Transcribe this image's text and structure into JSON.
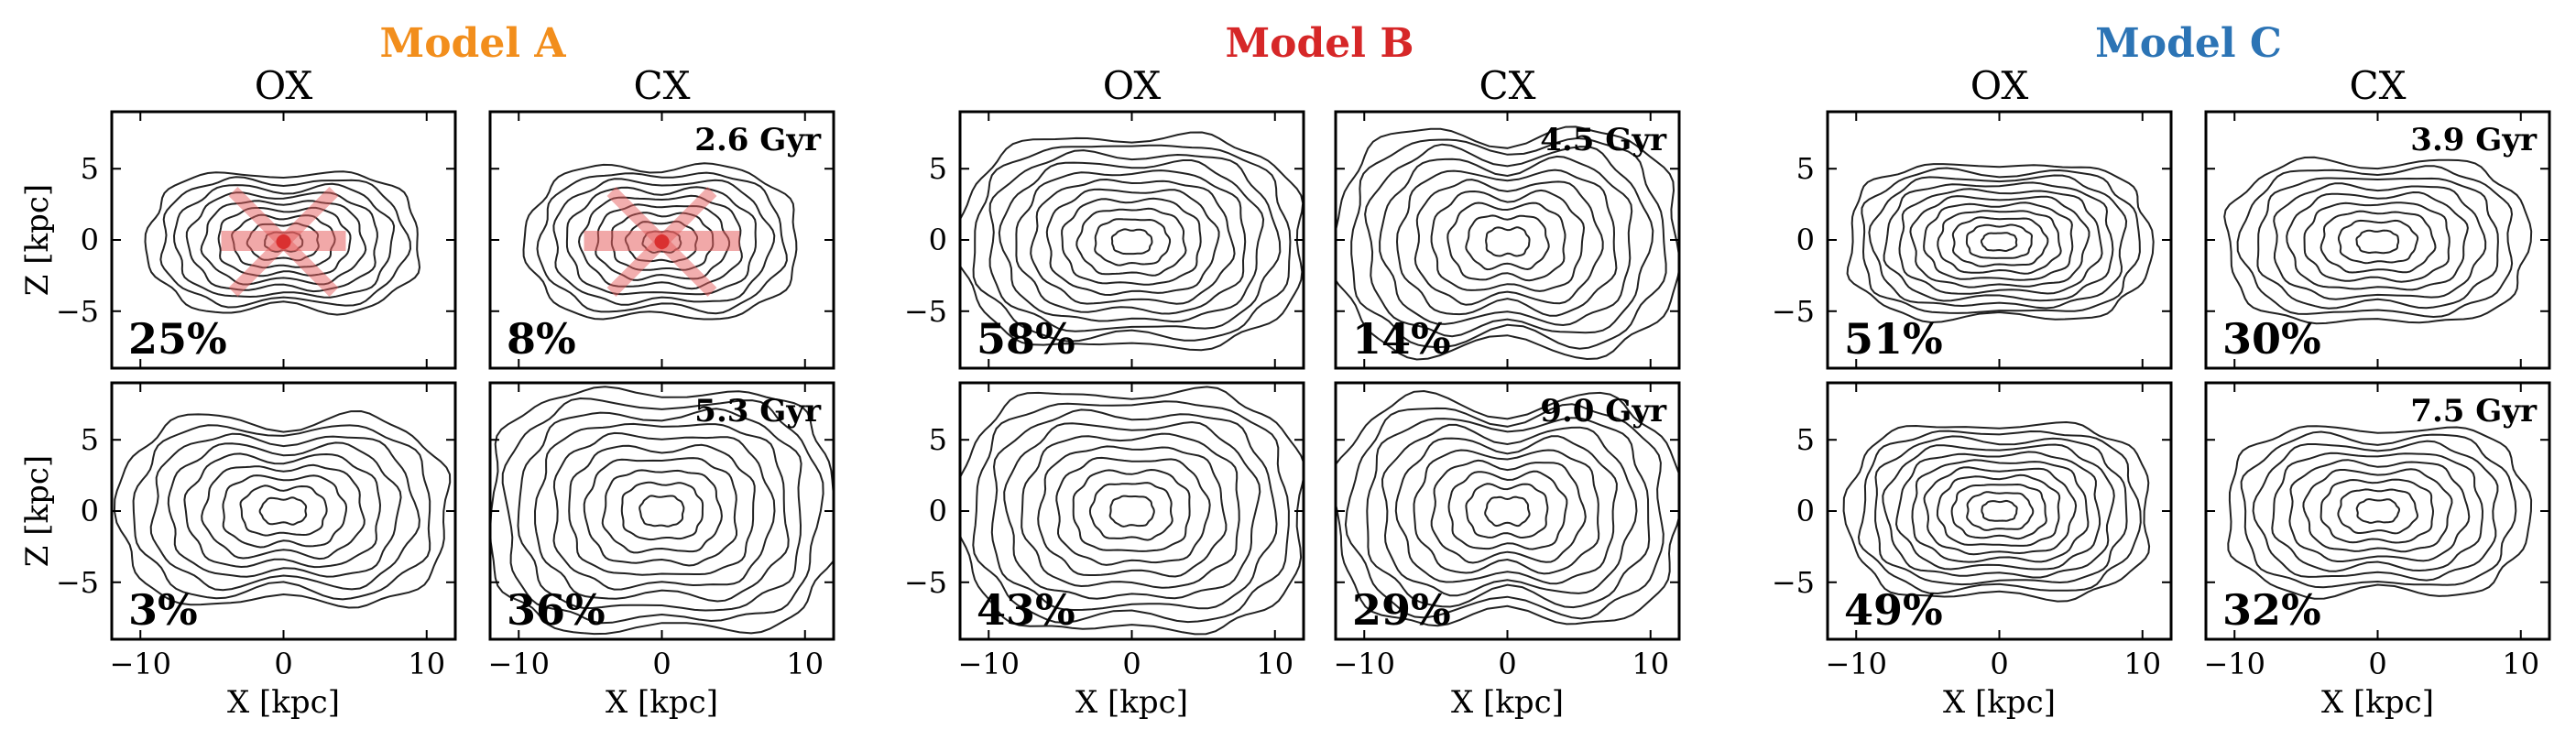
{
  "figure": {
    "xlabel": "X [kpc]",
    "ylabel": "Z [kpc]",
    "xticks": [
      "−10",
      "0",
      "10"
    ],
    "yticks": [
      "5",
      "0",
      "−5"
    ],
    "xlim": [
      -12,
      12
    ],
    "ylim": [
      -9,
      9
    ]
  },
  "models": [
    {
      "title": "Model A",
      "color": "#f28e1c",
      "columns": [
        "OX",
        "CX"
      ],
      "panels": [
        {
          "pct": "25%",
          "time": "",
          "xshape": true,
          "red_bar": true
        },
        {
          "pct": "8%",
          "time": "2.6 Gyr",
          "xshape": true,
          "red_bar": true
        },
        {
          "pct": "3%",
          "time": "",
          "xshape": false,
          "red_bar": false
        },
        {
          "pct": "36%",
          "time": "5.3 Gyr",
          "xshape": false,
          "red_bar": false
        }
      ]
    },
    {
      "title": "Model B",
      "color": "#d62728",
      "columns": [
        "OX",
        "CX"
      ],
      "panels": [
        {
          "pct": "58%",
          "time": "",
          "xshape": false,
          "red_bar": false
        },
        {
          "pct": "14%",
          "time": "4.5 Gyr",
          "xshape": false,
          "red_bar": false
        },
        {
          "pct": "43%",
          "time": "",
          "xshape": false,
          "red_bar": false
        },
        {
          "pct": "29%",
          "time": "9.0 Gyr",
          "xshape": false,
          "red_bar": false
        }
      ]
    },
    {
      "title": "Model C",
      "color": "#2c74b5",
      "columns": [
        "OX",
        "CX"
      ],
      "panels": [
        {
          "pct": "51%",
          "time": "",
          "xshape": false,
          "red_bar": false
        },
        {
          "pct": "30%",
          "time": "3.9 Gyr",
          "xshape": false,
          "red_bar": false
        },
        {
          "pct": "49%",
          "time": "",
          "xshape": false,
          "red_bar": false
        },
        {
          "pct": "32%",
          "time": "7.5 Gyr",
          "xshape": false,
          "red_bar": false
        }
      ]
    }
  ],
  "chart_data": {
    "type": "contour",
    "panels": [
      {
        "model": "Model A",
        "column": "OX",
        "row": 1,
        "percent": 25,
        "contour_levels": 9,
        "extent_x": 9.5,
        "extent_z": 5.5,
        "pinch": 0.35,
        "box": 0.25
      },
      {
        "model": "Model A",
        "column": "CX",
        "row": 1,
        "percent": 8,
        "time": "2.6 Gyr",
        "contour_levels": 9,
        "extent_x": 9.5,
        "extent_z": 6.0,
        "pinch": 0.3,
        "box": 0.2
      },
      {
        "model": "Model A",
        "column": "OX",
        "row": 2,
        "percent": 3,
        "contour_levels": 9,
        "extent_x": 11.5,
        "extent_z": 7.5,
        "pinch": 0.4,
        "box": 0.3
      },
      {
        "model": "Model A",
        "column": "CX",
        "row": 2,
        "percent": 36,
        "time": "5.3 Gyr",
        "contour_levels": 10,
        "extent_x": 12.0,
        "extent_z": 9.0,
        "pinch": 0.2,
        "box": 0.5
      },
      {
        "model": "Model B",
        "column": "OX",
        "row": 1,
        "percent": 58,
        "contour_levels": 11,
        "extent_x": 12.0,
        "extent_z": 8.0,
        "pinch": 0.2,
        "box": 0.3
      },
      {
        "model": "Model B",
        "column": "CX",
        "row": 1,
        "percent": 14,
        "time": "4.5 Gyr",
        "contour_levels": 10,
        "extent_x": 12.0,
        "extent_z": 9.0,
        "pinch": 0.45,
        "box": 0.3
      },
      {
        "model": "Model B",
        "column": "OX",
        "row": 2,
        "percent": 43,
        "contour_levels": 10,
        "extent_x": 12.0,
        "extent_z": 9.0,
        "pinch": 0.2,
        "box": 0.4
      },
      {
        "model": "Model B",
        "column": "CX",
        "row": 2,
        "percent": 29,
        "time": "9.0 Gyr",
        "contour_levels": 10,
        "extent_x": 12.0,
        "extent_z": 9.0,
        "pinch": 0.45,
        "box": 0.35
      },
      {
        "model": "Model C",
        "column": "OX",
        "row": 1,
        "percent": 51,
        "contour_levels": 11,
        "extent_x": 10.5,
        "extent_z": 5.8,
        "pinch": 0.2,
        "box": 0.45
      },
      {
        "model": "Model C",
        "column": "CX",
        "row": 1,
        "percent": 30,
        "time": "3.9 Gyr",
        "contour_levels": 9,
        "extent_x": 10.5,
        "extent_z": 6.2,
        "pinch": 0.25,
        "box": 0.35
      },
      {
        "model": "Model C",
        "column": "OX",
        "row": 2,
        "percent": 49,
        "contour_levels": 11,
        "extent_x": 10.5,
        "extent_z": 6.5,
        "pinch": 0.2,
        "box": 0.45
      },
      {
        "model": "Model C",
        "column": "CX",
        "row": 2,
        "percent": 32,
        "time": "7.5 Gyr",
        "contour_levels": 9,
        "extent_x": 10.5,
        "extent_z": 6.5,
        "pinch": 0.3,
        "box": 0.35
      }
    ]
  }
}
